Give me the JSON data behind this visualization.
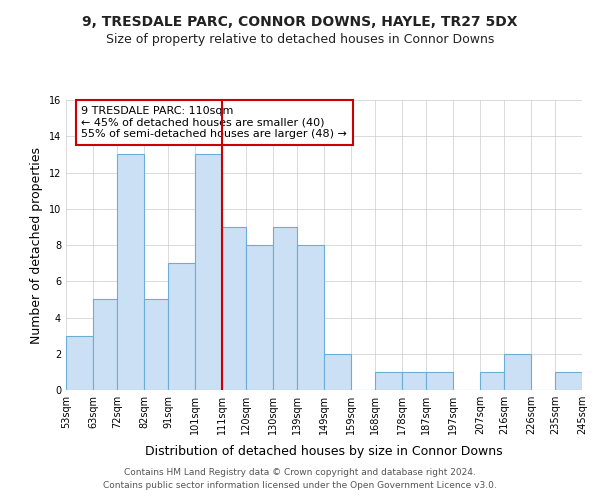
{
  "title": "9, TRESDALE PARC, CONNOR DOWNS, HAYLE, TR27 5DX",
  "subtitle": "Size of property relative to detached houses in Connor Downs",
  "xlabel": "Distribution of detached houses by size in Connor Downs",
  "ylabel": "Number of detached properties",
  "footer_line1": "Contains HM Land Registry data © Crown copyright and database right 2024.",
  "footer_line2": "Contains public sector information licensed under the Open Government Licence v3.0.",
  "annotation_line1": "9 TRESDALE PARC: 110sqm",
  "annotation_line2": "← 45% of detached houses are smaller (40)",
  "annotation_line3": "55% of semi-detached houses are larger (48) →",
  "bar_edges": [
    53,
    63,
    72,
    82,
    91,
    101,
    111,
    120,
    130,
    139,
    149,
    159,
    168,
    178,
    187,
    197,
    207,
    216,
    226,
    235,
    245
  ],
  "bar_heights": [
    3,
    5,
    13,
    5,
    7,
    13,
    9,
    8,
    9,
    8,
    2,
    0,
    1,
    1,
    1,
    0,
    1,
    2,
    0,
    1
  ],
  "bar_labels": [
    "53sqm",
    "63sqm",
    "72sqm",
    "82sqm",
    "91sqm",
    "101sqm",
    "111sqm",
    "120sqm",
    "130sqm",
    "139sqm",
    "149sqm",
    "159sqm",
    "168sqm",
    "178sqm",
    "187sqm",
    "197sqm",
    "207sqm",
    "216sqm",
    "226sqm",
    "235sqm",
    "245sqm"
  ],
  "bar_color": "#cce0f5",
  "bar_edge_color": "#6aaed6",
  "reference_line_x": 111,
  "reference_line_color": "#cc0000",
  "ylim": [
    0,
    16
  ],
  "yticks": [
    0,
    2,
    4,
    6,
    8,
    10,
    12,
    14,
    16
  ],
  "bg_color": "#ffffff",
  "plot_bg_color": "#ffffff",
  "annotation_box_facecolor": "#ffffff",
  "annotation_box_edgecolor": "#cc0000",
  "title_fontsize": 10,
  "subtitle_fontsize": 9,
  "axis_label_fontsize": 9,
  "tick_fontsize": 7,
  "annotation_fontsize": 8,
  "footer_fontsize": 6.5
}
